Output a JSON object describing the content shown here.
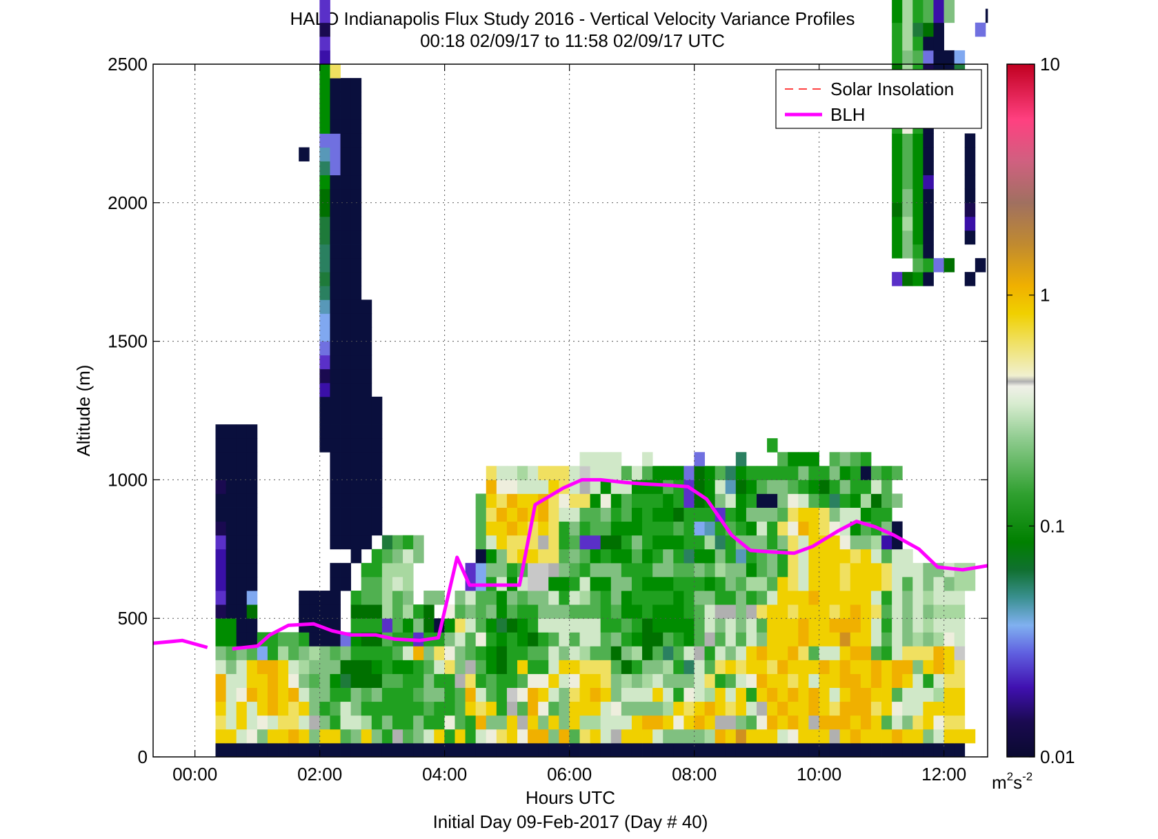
{
  "chart_data": {
    "type": "heatmap",
    "title": "HALO Indianapolis Flux Study 2016 - Vertical Velocity Variance Profiles",
    "subtitle": "00:18 02/09/17 to 11:58 02/09/17  UTC",
    "xlabel": "Hours UTC",
    "footer": "Initial Day 09-Feb-2017 (Day # 40)",
    "ylabel": "Altitude (m)",
    "x_ticks": [
      "00:00",
      "02:00",
      "04:00",
      "06:00",
      "08:00",
      "10:00",
      "12:00"
    ],
    "x_tick_hours": [
      0,
      2,
      4,
      6,
      8,
      10,
      12
    ],
    "xlim_hours": [
      -0.67,
      12.7
    ],
    "y_ticks": [
      "0",
      "500",
      "1000",
      "1500",
      "2000",
      "2500"
    ],
    "y_tick_values": [
      0,
      500,
      1000,
      1500,
      2000,
      2500
    ],
    "ylim": [
      0,
      2500
    ],
    "grid": true,
    "legend_position": "top-right",
    "legend": [
      {
        "label": "Solar Insolation",
        "color": "#ff0000",
        "style": "dashed"
      },
      {
        "label": "BLH",
        "color": "#ff00ff",
        "style": "solid"
      }
    ],
    "colorbar": {
      "scale": "log",
      "min": 0.01,
      "max": 10,
      "tick_labels": [
        "10",
        "1",
        "0.1",
        "0.01"
      ],
      "tick_values": [
        10,
        1,
        0.1,
        0.01
      ],
      "unit_base": "m",
      "unit_sup1": "2",
      "unit_mid": "s",
      "unit_sup2": "-2"
    },
    "palette": {
      "A": "#0a0f3d",
      "B": "#1a0a50",
      "C": "#3a10a8",
      "D": "#5a30c8",
      "E": "#7070e0",
      "F": "#80a8f0",
      "G": "#5898b8",
      "H": "#2a8060",
      "I": "#1e7a3a",
      "J": "#007000",
      "K": "#008c00",
      "L": "#20a020",
      "M": "#50b050",
      "N": "#80c080",
      "O": "#a8d8a0",
      "P": "#d0e8c8",
      "Q": "#eeeedd",
      "R": "#b0b0b0",
      "S": "#f0e060",
      "T": "#f0d000",
      "U": "#f0b000",
      "V": "#d09020",
      "W": "#c8c8c8"
    },
    "bin_hours": 0.1667,
    "bin_height_m": 50,
    "grid_start_hour": 0.33,
    "grid_start_alt": 50,
    "grid_rows_bottom_to_top": [
      "AAAAAAAAAAAAAAAAAAAAAAAAAAAAAAAAAAAAAAAAAAAAAAAAAAAAAAAAAAAAAAAAAAAAAAAA.",
      "TTPQNTTUTNTTMNTNLRMNPTLTLPQSTQUUNUMSTPRTTTPNNNNOUTVTTTPQTTTRTUTTTUTTNPTTT",
      "SPTPQPSSPRNLPPOLNLLNLLQMLUNNTRTNTNTOOPPPTUUTQTUTRRNMQUTUTRUUUTUTMPNSTQSS",
      "TPTPTUTSTNLMPNLLLLLLMLLMTSTLRMUQMNTTTPQNNNNOTSTUTSTPRTUTTUTSUUUSTQPPTTTT",
      "UPQUTUTUPNNLLNMNLLLMNNLMUPMLWQUTPNSTUTNPPPTPLQPOTPTLTUTUTUTPTUUTTMPPPOTT",
      "UPPTTUTQNMNKIJJJMMLLNLLRSLMLLMQQTPQTTSNONOPNNNPSLMPQUTTSTPTTUUTUTUTPLPSS",
      "PNPTUUTPONNNJJJKLKKLMPSNRMKJLTLLPTTSSSMJLNNOLHPMSTSTTSUTTTUTUTTUTUUNTUTS",
      "NMNMFLOMNONMNLLLLMPUNSQNMLKJLLMMPNPOMMJNOJMHMPRLPNPTUTTUSMPPTUUMLPSSSUTW",
      "KKAALLMMLAAAEKJJMLLDLLNPMQLKLKJLMPMPPMNLKJJMLKMRMPMPNTTTUTTTVTTPMPNONOQP",
      "KKAA....AAAA.LLLDMKNJAKSPMKIJKLPPPPPPLLMLJKKKKMPNPNPMTTTUTTUUUTPLPNPOPPP",
      "BAAJ....AAAA.JJJOMOLJ.QMNMNKMLLNNNMMMLMKKLKKKLMPRRNRSTTSTTTSTUTSMPNPNOOO",
      "DAAF....AAAA.LMMOMN.NN.NPMMKNMNNPLPOMLNKLLLLKLNNLLNLMPTTTUTTTTTPLPNPOPPP",
      "CAAA.......AA.MMOPO.....DFLPKPWWKKLPKKNNLKKKLLLKLNMOOMTSPTTTSTTTSPMPNPNOO",
      "CAAA.......AA.LLOOO.....DFNNLMWWRNMLNNNLLLNNMMNMONNKMNLSPTTTSTTTSPPPNNPOO",
      "CAAA.........A.LMNPN.....AKNSTTSSMNMKLKKMKLNLHKKNLGLMNLSPTTTTSTPMPP......",
      "DAAA.......AAAA.IMLN.....MPTSSSRSLMDDJJLNLKKKLLOHLNNNLNSPTTTQNNOCA......",
      "BAAA.......AAAAA.........MTTUTSTSLNLMMKKKLLLMLFGLMLKPLSQUTSQPKMLNA......",
      "AAAA.......AAAAA.........MSUTUTUSPPMMNLMKLKKJLLLDLKNNNMSTTSNPPKLL.......",
      "AAAA.......AAAAA.........MTSUTTUSQSSKQKMLLLKLDJKNPKLAANQPMLHLKOJMN......",
      "BAAA.......AAAAA..........UQQPPPTSPRPKPPKKKMLDJKPGJKMNNMLKJLNLLPM.......",
      "AAAA.......AAAAA..........SPPOPSSSPWPPPMPMKKKEJKMHKLLLLLNLLNKLAMLM......",
      "AAAA.......AAAAA...................PPPP..P....E...H...MKKK.MNML........",
      "AAAA......AAAAAA.....................................L................",
      "AAAA......AAAAAA.....................................................",
      "..........AAAAAA.....................................................",
      "..........AAAAAA.....................................................",
      "..........CAAAA......................................................",
      "..........BAAAA......................................................",
      "..........DAAAA......................................................",
      "..........EAAAA......................................................",
      "..........FAAAA......................................................",
      "..........FAAAA......................................................",
      "..........GAAAA.....................................................",
      "..........HAAA.......................................................",
      "..........IAAA...................................................DJKA...A..",
      "..........HAAA.....................................................MLEJ..A..",
      "..........HAAA...................................................KNLA.......",
      "..........IAAA...................................................KNKA...A..",
      "..........IAAA...................................................KOKA...C..",
      "..........JAAA...................................................JNKA...B..",
      "..........JAAA...................................................KNKA...A..",
      "..........KAAA...................................................KMKC...A..",
      "..........HEAA...................................................KMKA...A..",
      "........A.GEAA...................................................KMKA...A..",
      "..........EEAA...................................................KMKA...A..",
      "..........KAAA...................................................LQLA.....",
      "..........KAAA...................................................KPKA...A..",
      "..........KAAA...................................................LPLCA.AC..",
      "..........KAAA...................................................JOLAECF..",
      "..........KS.....................................................JOLBAAI..",
      "..........C......................................................LNMEAAF..",
      "..........D......................................................LOLAA.....",
      "..........B......................................................LOIJA...E..",
      "..........D......................................................KOLMCN...A..",
      "..........D......................................................KOLMCN......",
      "..........A......................................................IOLK....N.."
    ],
    "blh": {
      "x_hours": [
        -0.67,
        -0.2,
        0.2,
        0.6,
        1.0,
        1.2,
        1.5,
        1.9,
        2.2,
        2.5,
        2.9,
        3.2,
        3.6,
        3.9,
        4.2,
        4.4,
        4.6,
        5.2,
        5.45,
        5.9,
        6.2,
        6.5,
        6.9,
        7.2,
        7.6,
        7.9,
        8.2,
        8.6,
        8.9,
        9.2,
        9.6,
        9.9,
        10.3,
        10.6,
        10.9,
        11.2,
        11.6,
        11.9,
        12.3,
        12.7
      ],
      "y_m": [
        410,
        420,
        395,
        390,
        400,
        440,
        475,
        480,
        455,
        440,
        440,
        425,
        420,
        430,
        720,
        620,
        620,
        620,
        910,
        970,
        1000,
        1000,
        990,
        985,
        980,
        975,
        930,
        800,
        745,
        740,
        735,
        760,
        815,
        850,
        830,
        800,
        750,
        685,
        675,
        690
      ]
    }
  }
}
